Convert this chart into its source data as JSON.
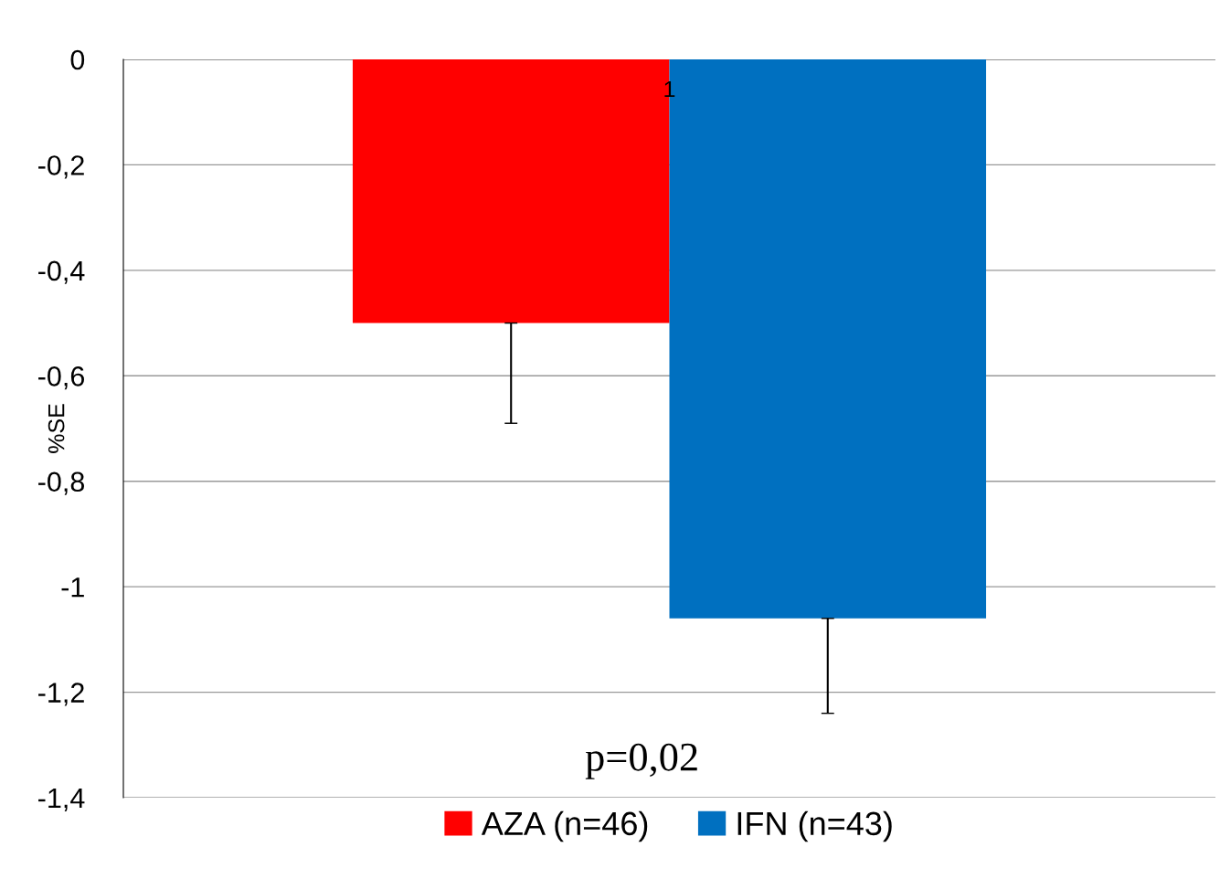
{
  "chart_data": {
    "type": "bar",
    "ylabel": "%SE",
    "categories": [
      "1"
    ],
    "series": [
      {
        "name": "AZA (n=46)",
        "color": "#ff0000",
        "values": [
          -0.5
        ],
        "errors": [
          [
            -0.69,
            -0.5
          ]
        ]
      },
      {
        "name": "IFN (n=43)",
        "color": "#0070c0",
        "values": [
          -1.06
        ],
        "errors": [
          [
            -1.24,
            -1.06
          ]
        ]
      }
    ],
    "ylim": [
      -1.4,
      0
    ],
    "yticks": [
      0,
      {
        "value": -0.2,
        "label": "-0,2"
      },
      {
        "value": -0.4,
        "label": "-0,4"
      },
      {
        "value": -0.6,
        "label": "-0,6"
      },
      {
        "value": -0.8,
        "label": "-0,8"
      },
      {
        "value": -1,
        "label": "-1"
      },
      {
        "value": -1.2,
        "label": "-1,2"
      },
      {
        "value": -1.4,
        "label": "-1,4"
      }
    ],
    "annotations": [
      "p=0,02"
    ],
    "grid": "y",
    "legend": "bottom"
  }
}
